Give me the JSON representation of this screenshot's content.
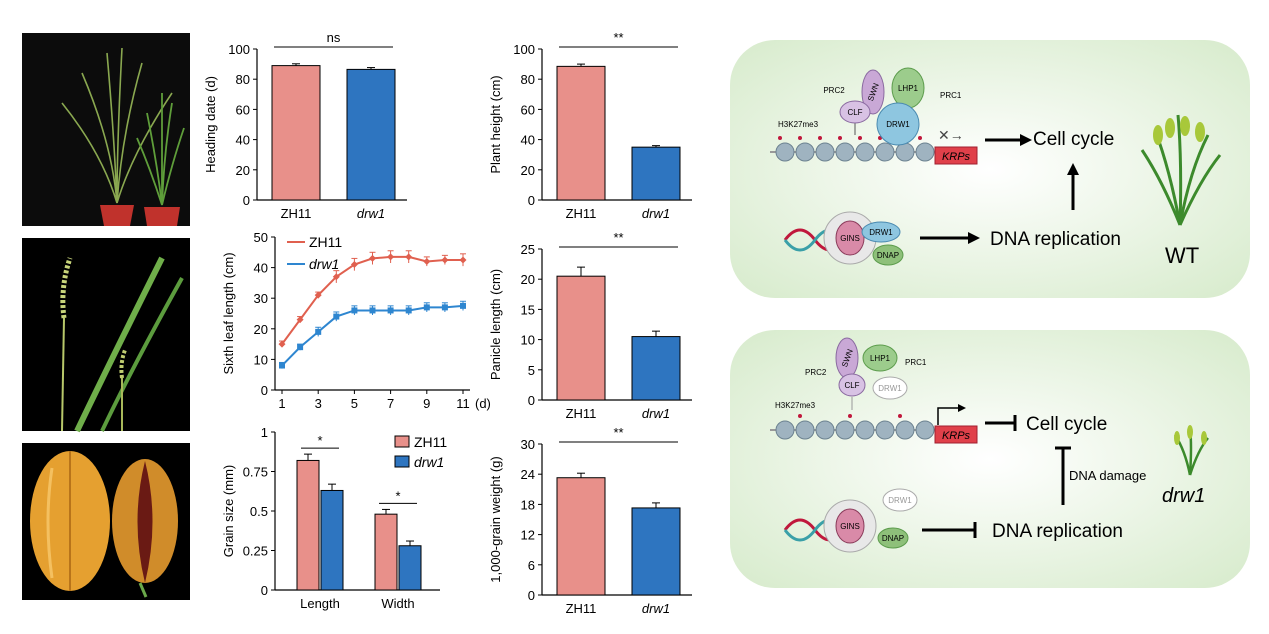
{
  "colors": {
    "wt_bar": "#e8908a",
    "mut_bar": "#2e75c0",
    "wt_line": "#e0604f",
    "mut_line": "#2e86d0",
    "panel_bg": "#e3f1dc",
    "krp_box": "#e0404a",
    "swn": "#c9a8d6",
    "lhp1": "#9ccc8c",
    "drw1": "#8ec6e0",
    "gins": "#d98aa8",
    "dnap": "#8ec07a"
  },
  "chart_data": [
    {
      "type": "bar",
      "id": "heading",
      "categories": [
        "ZH11",
        "drw1"
      ],
      "values": [
        89,
        86.5
      ],
      "errors": [
        1.2,
        1.2
      ],
      "ylabel": "Heading date (d)",
      "ylim": [
        0,
        100
      ],
      "yticks": [
        "0",
        "20",
        "40",
        "60",
        "80",
        "100"
      ],
      "sig": "ns"
    },
    {
      "type": "bar",
      "id": "height",
      "categories": [
        "ZH11",
        "drw1"
      ],
      "values": [
        88.5,
        35
      ],
      "errors": [
        1.5,
        1
      ],
      "ylabel": "Plant height (cm)",
      "ylim": [
        0,
        100
      ],
      "yticks": [
        "0",
        "20",
        "40",
        "60",
        "80",
        "100"
      ],
      "sig": "**"
    },
    {
      "type": "line",
      "id": "leaf",
      "x": [
        1,
        2,
        3,
        4,
        5,
        6,
        7,
        8,
        9,
        10,
        11
      ],
      "xticks": [
        "1",
        "3",
        "5",
        "7",
        "9",
        "11"
      ],
      "xunit": "(d)",
      "series": [
        {
          "name": "ZH11",
          "values": [
            15,
            23,
            31,
            37,
            41,
            43,
            43.5,
            43.5,
            42,
            42.5,
            42.5
          ],
          "errors": [
            1,
            1,
            1,
            2,
            2,
            2,
            2,
            2,
            1.5,
            1.5,
            2
          ]
        },
        {
          "name": "drw1",
          "values": [
            8,
            14,
            19,
            24,
            26,
            26,
            26,
            26,
            27,
            27,
            27.5
          ],
          "errors": [
            1,
            1,
            1.5,
            1.5,
            1.5,
            1.5,
            1.5,
            1.5,
            1.5,
            1.5,
            1.5
          ]
        }
      ],
      "ylabel": "Sixth leaf length (cm)",
      "ylim": [
        0,
        50
      ],
      "yticks": [
        "0",
        "10",
        "20",
        "30",
        "40",
        "50"
      ]
    },
    {
      "type": "bar",
      "id": "panicle",
      "categories": [
        "ZH11",
        "drw1"
      ],
      "values": [
        20.5,
        10.5
      ],
      "errors": [
        1.5,
        0.9
      ],
      "ylabel": "Panicle length (cm)",
      "ylim": [
        0,
        25
      ],
      "yticks": [
        "0",
        "5",
        "10",
        "15",
        "20",
        "25"
      ],
      "sig": "**"
    },
    {
      "type": "bar",
      "id": "grain",
      "categories": [
        "Length",
        "Width"
      ],
      "series": [
        {
          "name": "ZH11",
          "values": [
            0.82,
            0.48
          ],
          "errors": [
            0.04,
            0.03
          ]
        },
        {
          "name": "drw1",
          "values": [
            0.63,
            0.28
          ],
          "errors": [
            0.04,
            0.03
          ]
        }
      ],
      "ylabel": "Grain size (mm)",
      "ylim": [
        0,
        1
      ],
      "yticks": [
        "0",
        "0.25",
        "0.5",
        "0.75",
        "1"
      ],
      "sig": [
        "*",
        "*"
      ],
      "legend": "top-right"
    },
    {
      "type": "bar",
      "id": "weight",
      "categories": [
        "ZH11",
        "drw1"
      ],
      "values": [
        23.3,
        17.3
      ],
      "errors": [
        0.9,
        1
      ],
      "ylabel": "1,000-grain weight (g)",
      "ylim": [
        0,
        30
      ],
      "yticks": [
        "0",
        "6",
        "12",
        "18",
        "24",
        "30"
      ],
      "sig": "**"
    }
  ],
  "model": {
    "wt": {
      "labels": {
        "prc2": "PRC2",
        "prc1": "PRC1",
        "swn": "SWN",
        "lhp1": "LHP1",
        "clf": "CLF",
        "drw1": "DRW1",
        "mark": "H3K27me3",
        "krps": "KRPs",
        "gins": "GINS",
        "drw1b": "DRW1",
        "dnap": "DNAP"
      },
      "cell_cycle": "Cell cycle",
      "dna_replication": "DNA replication",
      "plant_label": "WT"
    },
    "mut": {
      "labels": {
        "prc2": "PRC2",
        "prc1": "PRC1",
        "swn": "SWN",
        "lhp1": "LHP1",
        "clf": "CLF",
        "drw1": "DRW1",
        "mark": "H3K27me3",
        "krps": "KRPs",
        "gins": "GINS",
        "drw1b": "DRW1",
        "dnap": "DNAP"
      },
      "cell_cycle": "Cell cycle",
      "dna_replication": "DNA replication",
      "damage": "DNA damage",
      "plant_label": "drw1"
    }
  }
}
